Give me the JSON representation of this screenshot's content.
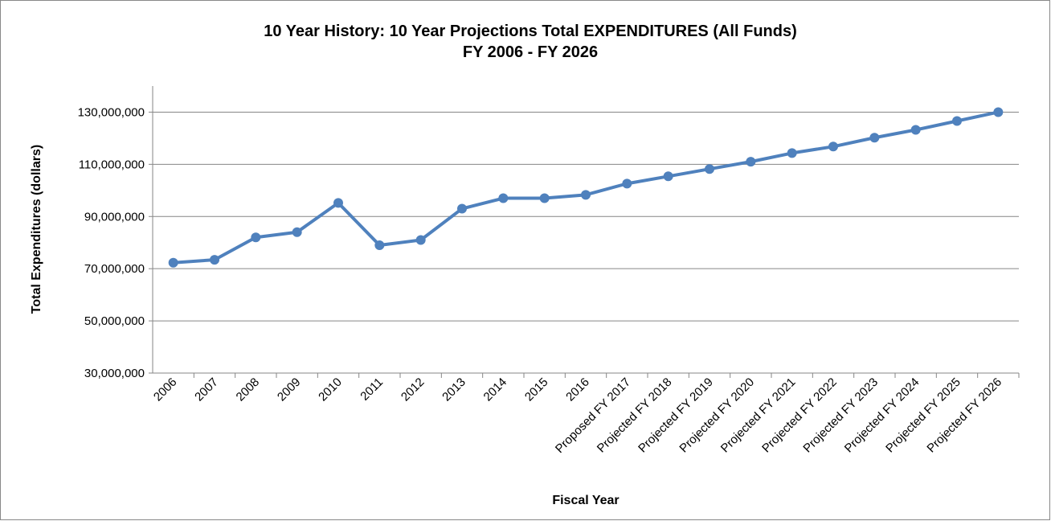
{
  "chart_data": {
    "type": "line",
    "title": "10 Year History: 10 Year Projections Total EXPENDITURES (All Funds)",
    "subtitle": "FY 2006 - FY 2026",
    "x_label": "Fiscal Year",
    "y_label": "Total Expenditures (dollars)",
    "categories": [
      "2006",
      "2007",
      "2008",
      "2009",
      "2010",
      "2011",
      "2012",
      "2013",
      "2014",
      "2015",
      "2016",
      "Proposed FY 2017",
      "Projected FY 2018",
      "Projected FY 2019",
      "Projected FY 2020",
      "Projected FY 2021",
      "Projected FY 2022",
      "Projected FY 2023",
      "Projected FY 2024",
      "Projected FY 2025",
      "Projected FY 2026"
    ],
    "series": [
      {
        "name": "Total Expenditures",
        "color": "#4f81bd",
        "values": [
          72300000,
          73400000,
          82000000,
          84000000,
          95200000,
          79000000,
          81000000,
          93000000,
          97000000,
          97000000,
          98300000,
          102600000,
          105400000,
          108200000,
          111000000,
          114300000,
          116800000,
          120200000,
          123200000,
          126600000,
          130000000
        ]
      }
    ],
    "ylim": [
      30000000,
      140000000
    ],
    "yticks": [
      {
        "value": 30000000,
        "label": "30,000,000"
      },
      {
        "value": 50000000,
        "label": "50,000,000"
      },
      {
        "value": 70000000,
        "label": "70,000,000"
      },
      {
        "value": 90000000,
        "label": "90,000,000"
      },
      {
        "value": 110000000,
        "label": "110,000,000"
      },
      {
        "value": 130000000,
        "label": "130,000,000"
      }
    ],
    "grid": true
  }
}
